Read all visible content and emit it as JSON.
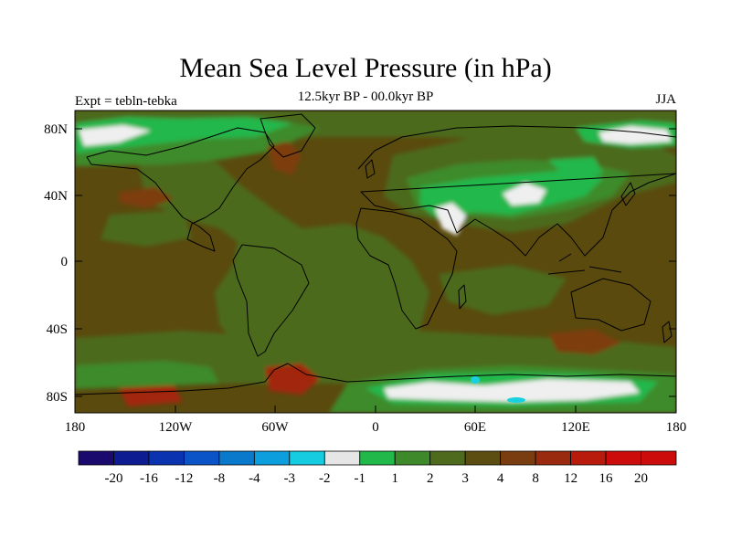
{
  "title": "Mean Sea Level Pressure (in hPa)",
  "subtitle_left": "Expt = tebln-tebka",
  "subtitle_center": "12.5kyr BP - 00.0kyr BP",
  "subtitle_right": "JJA",
  "lat_labels": [
    "80N",
    "40N",
    "0",
    "40S",
    "80S"
  ],
  "lon_labels": [
    "180",
    "120W",
    "60W",
    "0",
    "60E",
    "120E",
    "180"
  ],
  "colorbar": {
    "labels": [
      "-20",
      "-16",
      "-12",
      "-8",
      "-4",
      "-3",
      "-2",
      "-1",
      "1",
      "2",
      "3",
      "4",
      "8",
      "12",
      "16",
      "20"
    ],
    "colors": [
      "#1a0a6e",
      "#0d1c90",
      "#0a33b0",
      "#0b54c8",
      "#0a79cc",
      "#0d9edd",
      "#15cce0",
      "#e6e6e6",
      "#22b84a",
      "#3e8a2a",
      "#4e6a1c",
      "#5c4e10",
      "#7a3d10",
      "#9a2a0e",
      "#b81a0c",
      "#cc0b0b"
    ]
  },
  "palette": {
    "base": "#5a4a0e",
    "olive": "#4b6a1c",
    "green": "#3d8b2c",
    "bright": "#21b84c",
    "white": "#efefef",
    "brown": "#7d3c10",
    "red": "#a22510",
    "cyan": "#18d0e0"
  }
}
